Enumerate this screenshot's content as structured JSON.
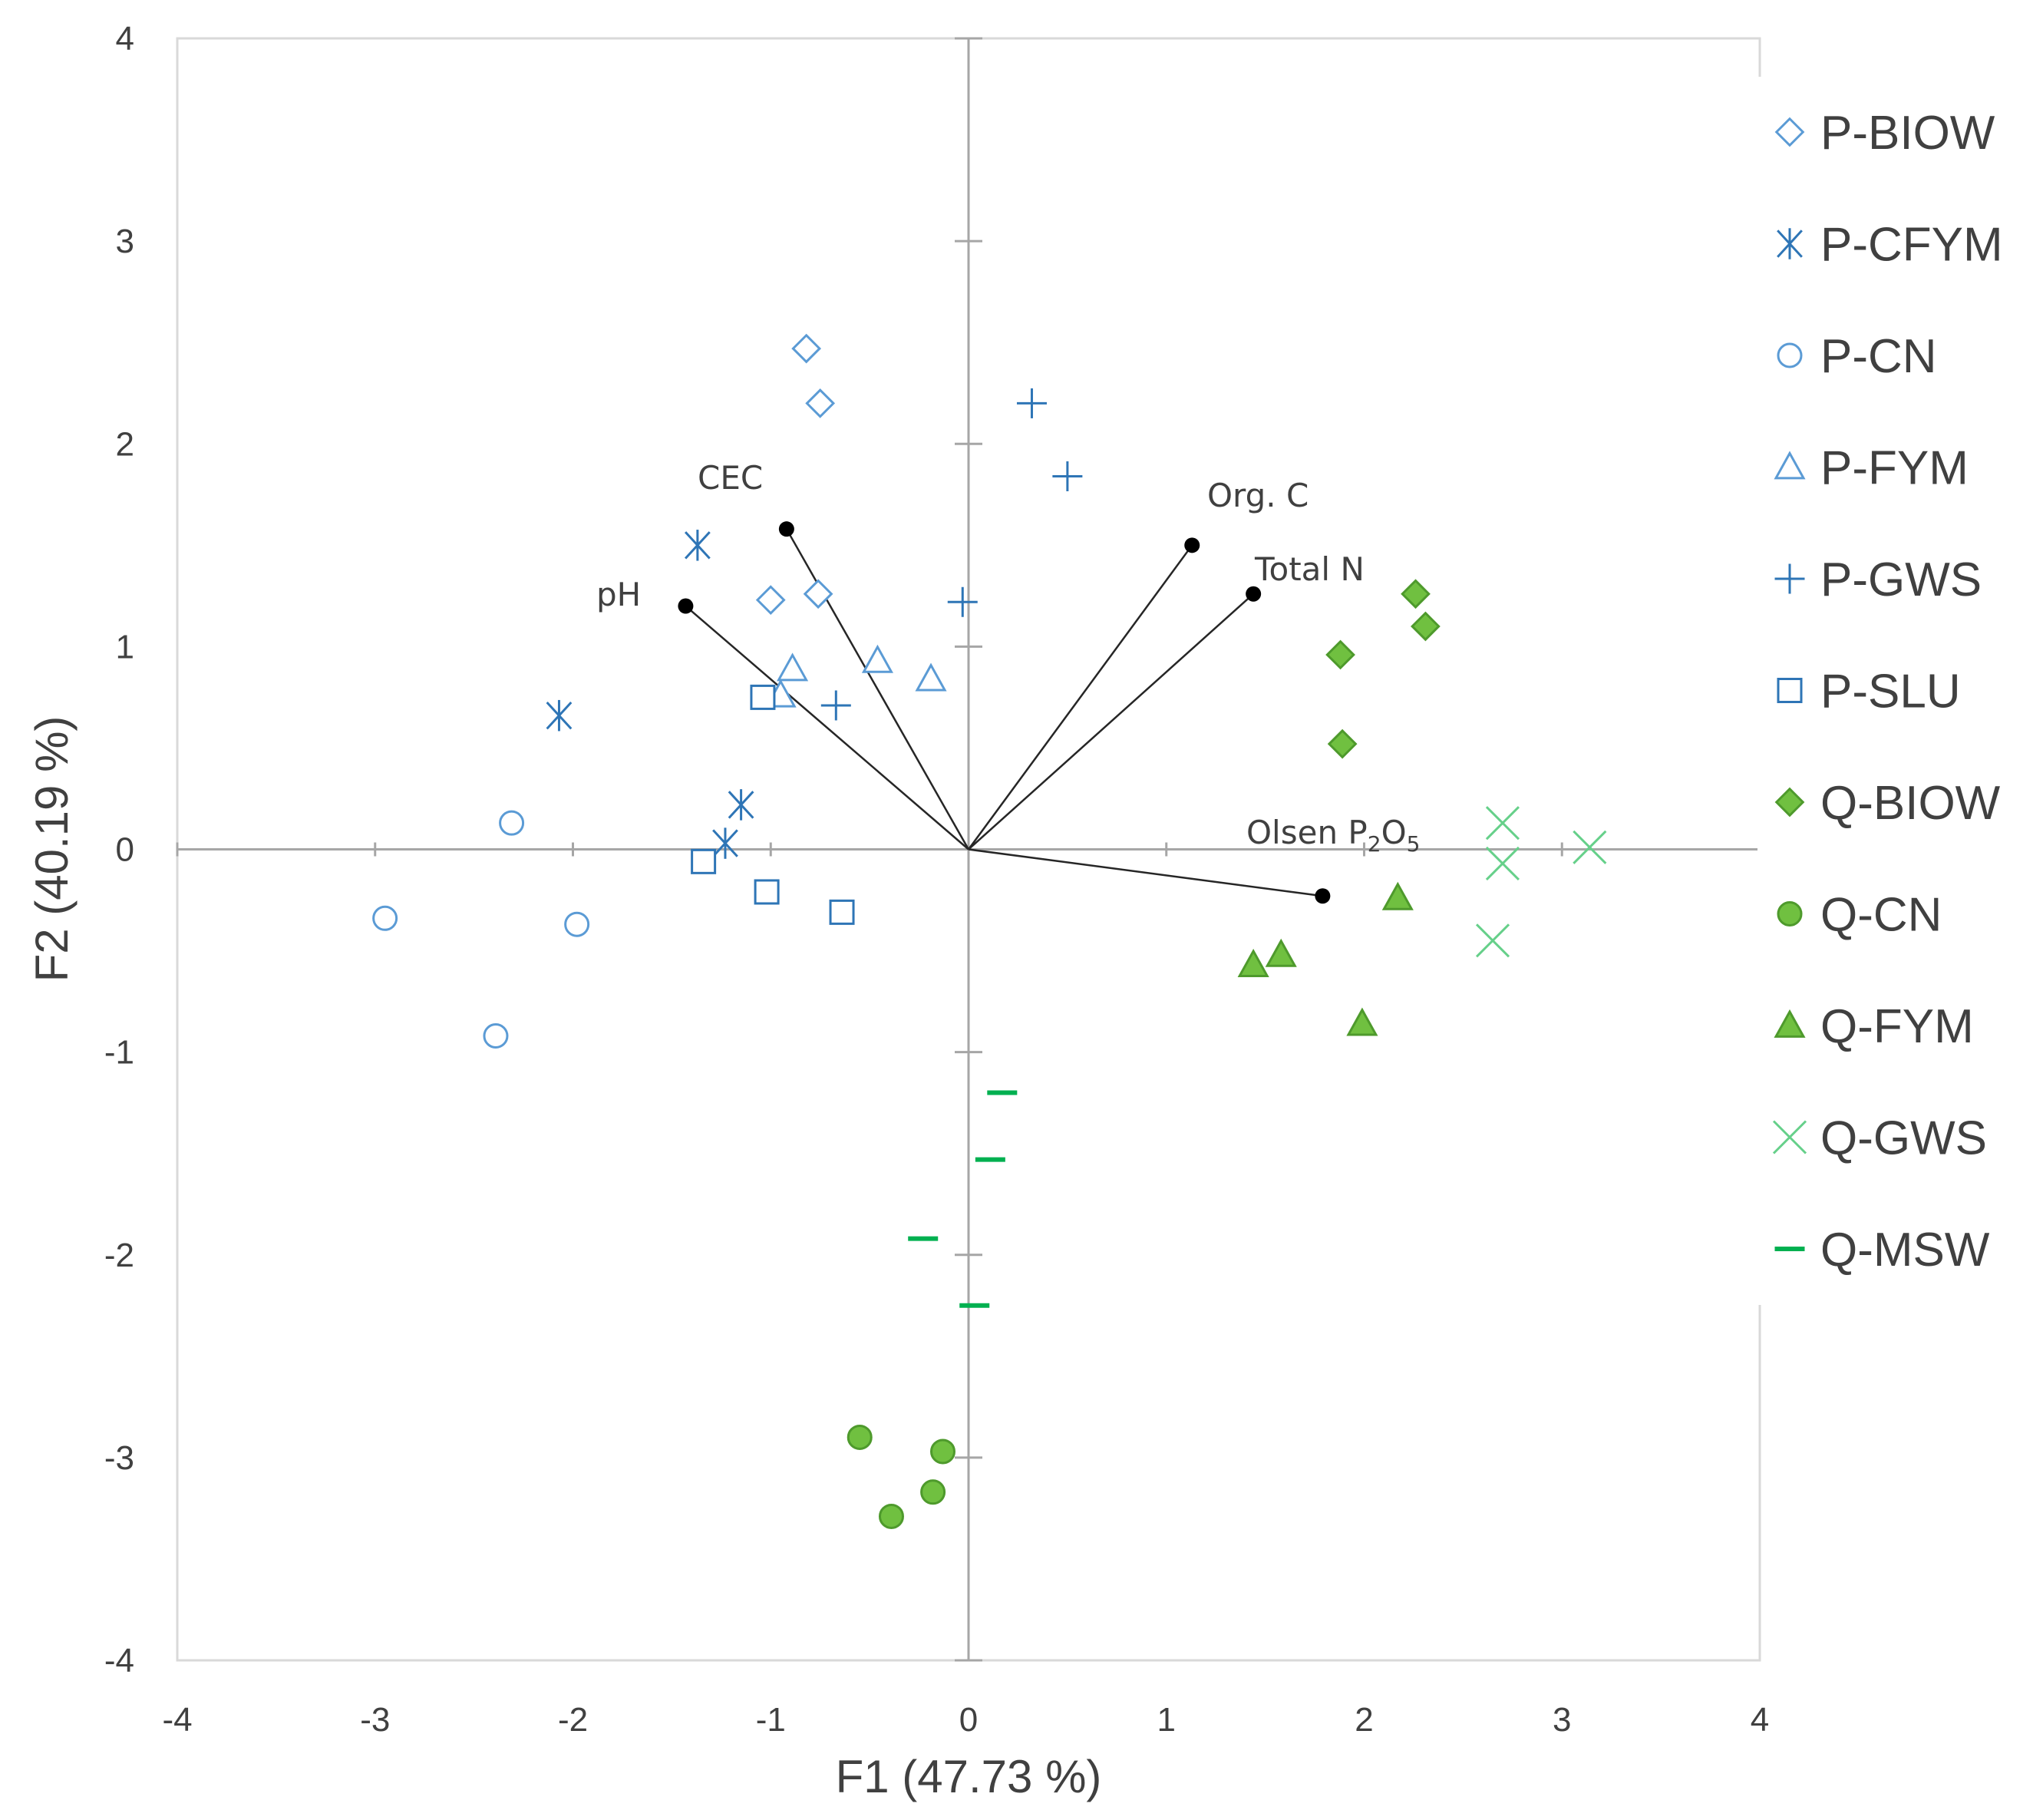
{
  "chart_data": {
    "type": "scatter",
    "title": "",
    "xlabel": "F1 (47.73 %)",
    "ylabel": "F2 (40.19 %)",
    "xlim": [
      -4,
      4
    ],
    "ylim": [
      -4,
      4
    ],
    "xticks": [
      "-4",
      "-3",
      "-2",
      "-1",
      "0",
      "1",
      "2",
      "3",
      "4"
    ],
    "yticks": [
      "-4",
      "-3",
      "-2",
      "-1",
      "0",
      "1",
      "2",
      "3",
      "4"
    ],
    "grid": false,
    "legend_position": "right",
    "series": [
      {
        "name": "P-BIOW",
        "marker": "diamond-open",
        "color": "#5B9BD5",
        "points": [
          [
            -0.82,
            2.47
          ],
          [
            -0.75,
            2.2
          ],
          [
            -1.0,
            1.23
          ],
          [
            -0.76,
            1.26
          ]
        ]
      },
      {
        "name": "P-CFYM",
        "marker": "asterisk",
        "color": "#2E75B6",
        "points": [
          [
            -1.37,
            1.5
          ],
          [
            -2.07,
            0.66
          ],
          [
            -1.15,
            0.22
          ],
          [
            -1.23,
            0.03
          ]
        ]
      },
      {
        "name": "P-CN",
        "marker": "circle-open",
        "color": "#5B9BD5",
        "points": [
          [
            -2.31,
            0.13
          ],
          [
            -2.95,
            -0.34
          ],
          [
            -1.98,
            -0.37
          ],
          [
            -2.39,
            -0.92
          ]
        ]
      },
      {
        "name": "P-FYM",
        "marker": "triangle-open",
        "color": "#5B9BD5",
        "points": [
          [
            -0.46,
            0.93
          ],
          [
            -0.19,
            0.84
          ],
          [
            -0.89,
            0.89
          ],
          [
            -0.95,
            0.76
          ]
        ]
      },
      {
        "name": "P-GWS",
        "marker": "plus",
        "color": "#2E75B6",
        "points": [
          [
            0.32,
            2.2
          ],
          [
            0.5,
            1.84
          ],
          [
            -0.03,
            1.22
          ],
          [
            -0.67,
            0.71
          ]
        ]
      },
      {
        "name": "P-SLU",
        "marker": "square-open",
        "color": "#2E75B6",
        "points": [
          [
            -1.04,
            0.75
          ],
          [
            -1.34,
            -0.06
          ],
          [
            -1.02,
            -0.21
          ],
          [
            -0.64,
            -0.31
          ]
        ]
      },
      {
        "name": "Q-BIOW",
        "marker": "diamond-filled",
        "color": "#70C040",
        "points": [
          [
            2.26,
            1.26
          ],
          [
            2.31,
            1.1
          ],
          [
            1.88,
            0.96
          ],
          [
            1.89,
            0.52
          ]
        ]
      },
      {
        "name": "Q-CN",
        "marker": "circle-filled",
        "color": "#70C040",
        "points": [
          [
            -0.55,
            -2.9
          ],
          [
            -0.13,
            -2.97
          ],
          [
            -0.18,
            -3.17
          ],
          [
            -0.39,
            -3.29
          ]
        ]
      },
      {
        "name": "Q-FYM",
        "marker": "triangle-filled",
        "color": "#70C040",
        "points": [
          [
            2.17,
            -0.24
          ],
          [
            1.44,
            -0.57
          ],
          [
            1.58,
            -0.52
          ],
          [
            1.99,
            -0.86
          ]
        ]
      },
      {
        "name": "Q-GWS",
        "marker": "x",
        "color": "#66D08A",
        "points": [
          [
            2.7,
            0.13
          ],
          [
            3.14,
            0.01
          ],
          [
            2.7,
            -0.07
          ],
          [
            2.65,
            -0.45
          ]
        ]
      },
      {
        "name": "Q-MSW",
        "marker": "dash",
        "color": "#00B050",
        "points": [
          [
            0.17,
            -1.2
          ],
          [
            0.11,
            -1.53
          ],
          [
            -0.23,
            -1.92
          ],
          [
            0.03,
            -2.25
          ]
        ]
      }
    ],
    "vectors": [
      {
        "name": "pH",
        "x": -1.43,
        "y": 1.2
      },
      {
        "name": "CEC",
        "x": -0.92,
        "y": 1.58
      },
      {
        "name": "Org. C",
        "x": 1.13,
        "y": 1.5
      },
      {
        "name": "Total N",
        "x": 1.44,
        "y": 1.26
      },
      {
        "name": "Olsen P2O5",
        "x": 1.79,
        "y": -0.23
      }
    ]
  },
  "vector_labels": {
    "ph": "pH",
    "cec": "CEC",
    "orgc": "Org. C",
    "totaln": "Total N",
    "olsen_main": "Olsen P",
    "olsen_sub1": "2",
    "olsen_mid": "O",
    "olsen_sub2": "5"
  },
  "colors": {
    "axis_line": "#A6A6A6",
    "frame": "#D9D9D9",
    "vector": "#262626",
    "text": "#404040"
  }
}
